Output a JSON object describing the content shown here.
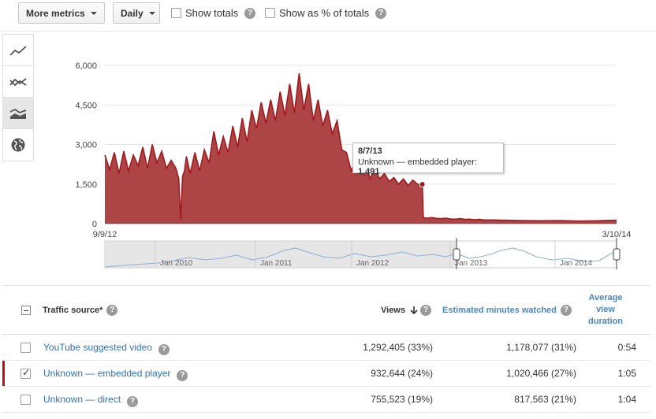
{
  "toolbar": {
    "more_metrics": "More metrics",
    "granularity": "Daily",
    "show_totals": "Show totals",
    "show_pct_totals": "Show as % of totals"
  },
  "chart_data": {
    "type": "area",
    "series": [
      {
        "name": "Unknown — embedded player",
        "color": "#9e1b1e"
      }
    ],
    "y_ticks": [
      "6,000",
      "4,500",
      "3,000",
      "1,500",
      "0"
    ],
    "ylim": [
      0,
      6000
    ],
    "x_start": "9/9/12",
    "x_end": "3/10/14",
    "x": [
      0,
      5,
      10,
      15,
      20,
      25,
      30,
      35,
      40,
      45,
      50,
      55,
      60,
      65,
      70,
      75,
      78,
      80,
      82,
      84,
      86,
      90,
      95,
      100,
      105,
      110,
      115,
      120,
      125,
      130,
      135,
      140,
      145,
      150,
      155,
      160,
      165,
      170,
      175,
      180,
      185,
      190,
      195,
      200,
      205,
      210,
      215,
      220,
      225,
      230,
      235,
      240,
      245,
      250,
      255,
      260,
      265,
      270,
      275,
      280,
      285,
      290,
      295,
      300,
      305,
      310,
      315,
      320,
      325,
      330,
      335,
      336,
      337,
      338,
      340,
      345,
      350,
      355,
      360,
      365,
      370,
      375,
      380,
      385,
      390,
      395,
      400,
      410,
      420,
      440,
      460,
      480,
      500,
      520,
      540
    ],
    "values": [
      2600,
      2050,
      2700,
      1900,
      2750,
      2000,
      2600,
      2200,
      2900,
      2100,
      3000,
      2300,
      2750,
      2100,
      2400,
      2100,
      1700,
      170,
      1800,
      2000,
      2550,
      1900,
      2700,
      2000,
      2800,
      2300,
      3500,
      2600,
      3300,
      2700,
      3700,
      2900,
      4000,
      3100,
      4300,
      3600,
      4600,
      3800,
      4700,
      3900,
      5000,
      4100,
      5300,
      4200,
      5700,
      4300,
      5300,
      3900,
      4700,
      3700,
      4300,
      3400,
      3900,
      2800,
      2700,
      2000,
      2400,
      1900,
      2300,
      1700,
      2100,
      1700,
      1900,
      1600,
      1750,
      1500,
      1700,
      1450,
      1650,
      1500,
      1491,
      250,
      200,
      220,
      210,
      230,
      200,
      190,
      210,
      180,
      170,
      190,
      160,
      170,
      150,
      160,
      140,
      140,
      130,
      120,
      110,
      120,
      100,
      110,
      130
    ],
    "tooltip": {
      "date": "8/7/13",
      "series": "Unknown — embedded player:",
      "value": "1,491"
    },
    "navigator_labels": [
      "Jan 2010",
      "Jan 2011",
      "Jan 2012",
      "Jan 2013",
      "Jan 2014"
    ]
  },
  "table": {
    "headers": {
      "source": "Traffic source*",
      "views": "Views",
      "minutes": "Estimated minutes watched",
      "avg_dur_1": "Average",
      "avg_dur_2": "view",
      "avg_dur_3": "duration"
    },
    "rows": [
      {
        "name": "YouTube suggested video",
        "views": "1,292,405 (33%)",
        "minutes": "1,178,077 (31%)",
        "avg": "0:54"
      },
      {
        "name": "Unknown — embedded player",
        "views": "932,644 (24%)",
        "minutes": "1,020,466 (27%)",
        "avg": "1:05"
      },
      {
        "name": "Unknown — direct",
        "views": "755,523 (19%)",
        "minutes": "817,563 (21%)",
        "avg": "1:04"
      }
    ]
  }
}
